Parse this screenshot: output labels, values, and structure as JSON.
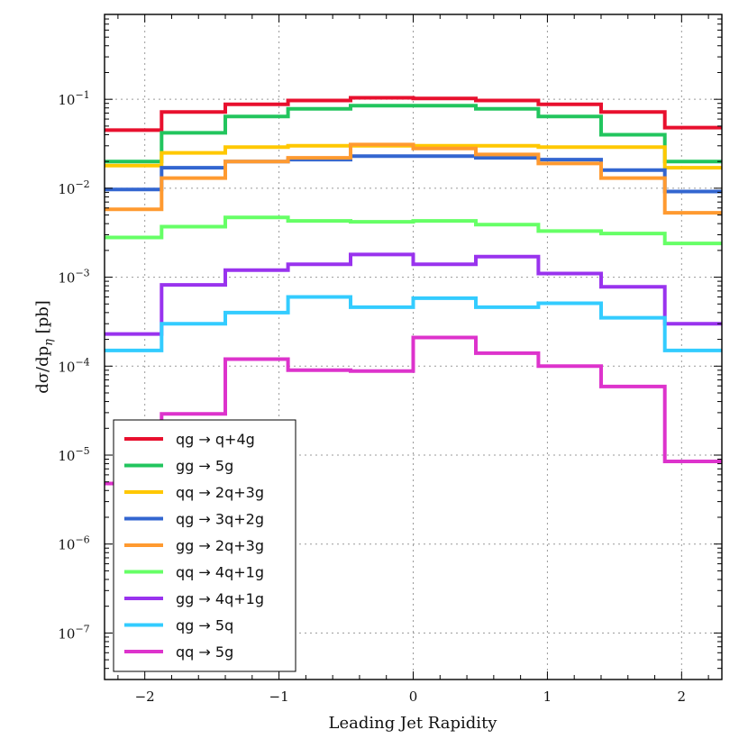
{
  "chart_data": {
    "type": "line",
    "style": "step-histogram",
    "title": "",
    "xlabel": "Leading Jet Rapidity",
    "ylabel": "dσ/dp_η [pb]",
    "ylabel_parts": {
      "main": "dσ/dp",
      "sub": "η",
      "unit": " [pb]"
    },
    "xscale": "linear",
    "yscale": "log",
    "xlim": [
      -2.3,
      2.3
    ],
    "ylim": [
      3e-08,
      0.9
    ],
    "grid": true,
    "legend_position": "lower-left",
    "x_ticks": [
      {
        "value": -2,
        "label": "−2"
      },
      {
        "value": -1,
        "label": "−1"
      },
      {
        "value": 0,
        "label": "0"
      },
      {
        "value": 1,
        "label": "1"
      },
      {
        "value": 2,
        "label": "2"
      }
    ],
    "y_ticks": [
      {
        "exp": -1,
        "base": "10",
        "sup": "−1"
      },
      {
        "exp": -2,
        "base": "10",
        "sup": "−2"
      },
      {
        "exp": -3,
        "base": "10",
        "sup": "−3"
      },
      {
        "exp": -4,
        "base": "10",
        "sup": "−4"
      },
      {
        "exp": -5,
        "base": "10",
        "sup": "−5"
      },
      {
        "exp": -6,
        "base": "10",
        "sup": "−6"
      },
      {
        "exp": -7,
        "base": "10",
        "sup": "−7"
      }
    ],
    "bin_edges": [
      -2.3,
      -1.875,
      -1.4,
      -0.933,
      -0.467,
      0,
      0.467,
      0.933,
      1.4,
      1.875,
      2.3
    ],
    "series": [
      {
        "name": "qg → q+4g",
        "color": "#e8102e",
        "values": [
          0.045,
          0.072,
          0.088,
          0.097,
          0.104,
          0.102,
          0.097,
          0.088,
          0.072,
          0.048
        ]
      },
      {
        "name": "gg → 5g",
        "color": "#22c55e",
        "values": [
          0.02,
          0.042,
          0.064,
          0.078,
          0.085,
          0.085,
          0.078,
          0.064,
          0.04,
          0.02
        ]
      },
      {
        "name": "qq → 2q+3g",
        "color": "#ffc800",
        "values": [
          0.018,
          0.025,
          0.029,
          0.03,
          0.03,
          0.03,
          0.03,
          0.029,
          0.029,
          0.017
        ]
      },
      {
        "name": "qg → 3q+2g",
        "color": "#3366d0",
        "values": [
          0.0097,
          0.017,
          0.02,
          0.021,
          0.023,
          0.023,
          0.022,
          0.021,
          0.016,
          0.0092
        ]
      },
      {
        "name": "gg → 2q+3g",
        "color": "#ff9a30",
        "values": [
          0.0058,
          0.013,
          0.02,
          0.022,
          0.031,
          0.028,
          0.024,
          0.019,
          0.013,
          0.0053
        ]
      },
      {
        "name": "qq → 4q+1g",
        "color": "#66ff66",
        "values": [
          0.0028,
          0.0037,
          0.0047,
          0.0043,
          0.0042,
          0.0043,
          0.0039,
          0.0033,
          0.0031,
          0.0024
        ]
      },
      {
        "name": "gg → 4q+1g",
        "color": "#9933ee",
        "values": [
          0.00023,
          0.00082,
          0.0012,
          0.0014,
          0.0018,
          0.0014,
          0.0017,
          0.0011,
          0.00078,
          0.0003
        ]
      },
      {
        "name": "qg → 5q",
        "color": "#33ccff",
        "values": [
          0.00015,
          0.0003,
          0.0004,
          0.0006,
          0.00046,
          0.00058,
          0.00046,
          0.00051,
          0.00035,
          0.00015
        ]
      },
      {
        "name": "qq → 5g",
        "color": "#dd33cc",
        "values": [
          4.8e-06,
          2.9e-05,
          0.00012,
          9e-05,
          8.8e-05,
          0.00021,
          0.00014,
          0.0001,
          5.9e-05,
          8.5e-06
        ]
      }
    ]
  }
}
